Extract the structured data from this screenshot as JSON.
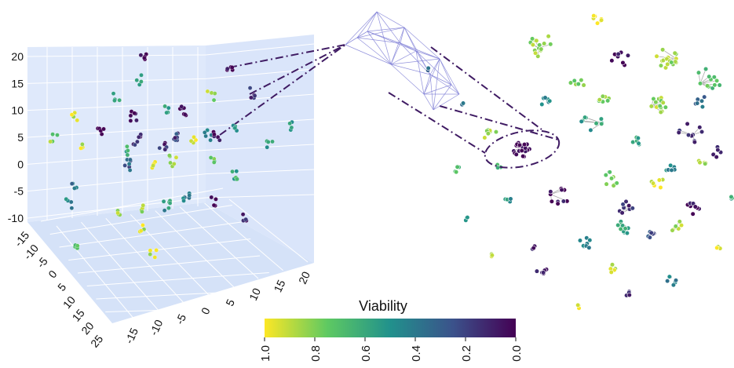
{
  "chart_data": [
    {
      "type": "scatter",
      "dimensions": 3,
      "title": "",
      "axes": {
        "z": {
          "ticks": [
            "20",
            "15",
            "10",
            "5",
            "0",
            "-5",
            "-10"
          ],
          "range": [
            -10,
            20
          ]
        },
        "x": {
          "ticks": [
            "-15",
            "-10",
            "-5",
            "0",
            "5",
            "10",
            "15",
            "20"
          ],
          "range": [
            -15,
            20
          ]
        },
        "y": {
          "ticks": [
            "-15",
            "-10",
            "-5",
            "0",
            "5",
            "10",
            "15",
            "20",
            "25"
          ],
          "range": [
            -15,
            25
          ]
        }
      },
      "pane_color": "#dfe9fb",
      "grid": true,
      "color_by": "Viability",
      "approx_point_count": 170
    },
    {
      "type": "network",
      "description_of_marks": "clusters of nodes colored by viability, with gray edges; one zoomed cluster linked to the 3D plot by dash-dot lines",
      "edge_color": "#aaaaaa",
      "zoom_edge_color": "#7f7fd6",
      "connector_color": "#3f1b63"
    }
  ],
  "colorbar": {
    "title": "Viability",
    "tick_labels": [
      "1.0",
      "0.8",
      "0.6",
      "0.4",
      "0.2",
      "0.0"
    ],
    "tick_values": [
      1.0,
      0.8,
      0.6,
      0.4,
      0.2,
      0.0
    ],
    "colormap": "viridis",
    "stops": [
      "#fde725",
      "#5ec962",
      "#21918c",
      "#3b528b",
      "#440154"
    ]
  }
}
